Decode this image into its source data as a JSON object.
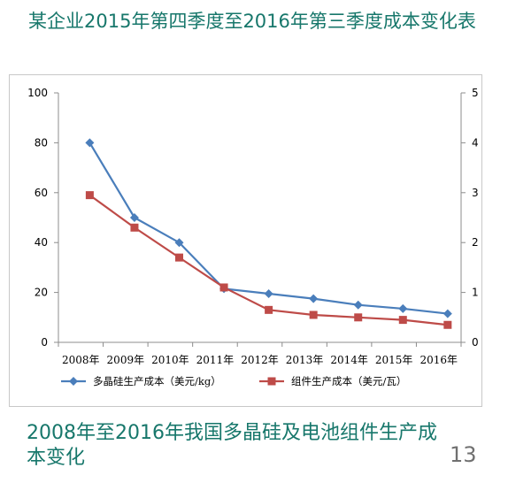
{
  "slide": {
    "title": "某企业2015年第四季度至2016年第三季度成本变化表",
    "caption": "2008年至2016年我国多晶硅及电池组件生产成本变化",
    "page_number": "13"
  },
  "chart_data": {
    "type": "line",
    "title": "",
    "xlabel": "",
    "ylabel": "",
    "categories": [
      "2008年",
      "2009年",
      "2010年",
      "2011年",
      "2012年",
      "2013年",
      "2014年",
      "2015年",
      "2016年"
    ],
    "x_positions": [
      2008.5,
      2009.5,
      2010.5,
      2011.5,
      2012.5,
      2013.5,
      2014.5,
      2015.5,
      2016.5
    ],
    "x_range": [
      2008,
      2017
    ],
    "y_left": {
      "range": [
        0,
        100
      ],
      "ticks": [
        0,
        20,
        40,
        60,
        80,
        100
      ]
    },
    "y_right": {
      "range": [
        0,
        5
      ],
      "ticks": [
        0,
        1,
        2,
        3,
        4,
        5
      ]
    },
    "grid": false,
    "legend_position": "bottom",
    "series": [
      {
        "name": "多晶硅生产成本（美元/kg）",
        "axis": "left",
        "marker": "diamond",
        "color": "#4a7ebb",
        "x": [
          2008.7,
          2009.7,
          2010.7,
          2011.7,
          2012.7,
          2013.7,
          2014.7,
          2015.7,
          2016.7
        ],
        "values": [
          80,
          50,
          40,
          21.5,
          19.5,
          17.5,
          15,
          13.5,
          11.5
        ]
      },
      {
        "name": "组件生产成本（美元/瓦）",
        "axis": "right",
        "marker": "square",
        "color": "#be4b48",
        "x": [
          2008.7,
          2009.7,
          2010.7,
          2011.7,
          2012.7,
          2013.7,
          2014.7,
          2015.7,
          2016.7
        ],
        "values": [
          2.95,
          2.3,
          1.7,
          1.1,
          0.65,
          0.55,
          0.5,
          0.45,
          0.35
        ]
      }
    ]
  }
}
